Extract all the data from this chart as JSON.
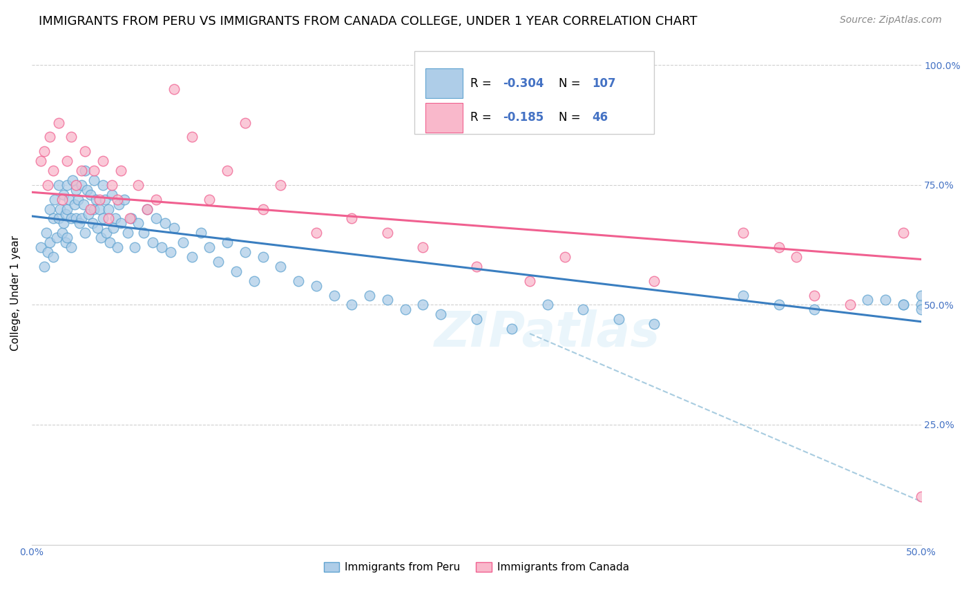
{
  "title": "IMMIGRANTS FROM PERU VS IMMIGRANTS FROM CANADA COLLEGE, UNDER 1 YEAR CORRELATION CHART",
  "source": "Source: ZipAtlas.com",
  "ylabel": "College, Under 1 year",
  "xlim": [
    0.0,
    0.5
  ],
  "ylim": [
    0.0,
    1.05
  ],
  "xtick_labels": [
    "0.0%",
    "",
    "",
    "",
    "",
    "50.0%"
  ],
  "xtick_vals": [
    0.0,
    0.1,
    0.2,
    0.3,
    0.4,
    0.5
  ],
  "ytick_vals": [
    0.25,
    0.5,
    0.75,
    1.0
  ],
  "ytick_right_labels": [
    "25.0%",
    "50.0%",
    "75.0%",
    "100.0%"
  ],
  "blue_color": "#aecde8",
  "blue_edge_color": "#5fa3d0",
  "pink_color": "#f9b8cb",
  "pink_edge_color": "#f06090",
  "blue_line_color": "#3a7ec0",
  "pink_line_color": "#f06090",
  "dashed_line_color": "#a8cce0",
  "right_axis_color": "#4472c4",
  "legend_R_blue": "-0.304",
  "legend_N_blue": "107",
  "legend_R_pink": "-0.185",
  "legend_N_pink": "46",
  "watermark": "ZIPatlas",
  "blue_trend_x0": 0.0,
  "blue_trend_x1": 0.5,
  "blue_trend_y0": 0.685,
  "blue_trend_y1": 0.465,
  "pink_trend_x0": 0.0,
  "pink_trend_x1": 0.5,
  "pink_trend_y0": 0.735,
  "pink_trend_y1": 0.595,
  "dashed_trend_x0": 0.28,
  "dashed_trend_x1": 0.5,
  "dashed_trend_y0": 0.44,
  "dashed_trend_y1": 0.09,
  "blue_scatter_x": [
    0.005,
    0.007,
    0.008,
    0.009,
    0.01,
    0.01,
    0.012,
    0.012,
    0.013,
    0.014,
    0.015,
    0.015,
    0.016,
    0.017,
    0.018,
    0.018,
    0.019,
    0.019,
    0.02,
    0.02,
    0.02,
    0.021,
    0.022,
    0.022,
    0.023,
    0.024,
    0.025,
    0.025,
    0.026,
    0.027,
    0.028,
    0.028,
    0.029,
    0.03,
    0.03,
    0.031,
    0.032,
    0.033,
    0.034,
    0.035,
    0.035,
    0.036,
    0.037,
    0.038,
    0.039,
    0.04,
    0.04,
    0.041,
    0.042,
    0.043,
    0.044,
    0.045,
    0.046,
    0.047,
    0.048,
    0.049,
    0.05,
    0.052,
    0.054,
    0.056,
    0.058,
    0.06,
    0.063,
    0.065,
    0.068,
    0.07,
    0.073,
    0.075,
    0.078,
    0.08,
    0.085,
    0.09,
    0.095,
    0.1,
    0.105,
    0.11,
    0.115,
    0.12,
    0.125,
    0.13,
    0.14,
    0.15,
    0.16,
    0.17,
    0.18,
    0.19,
    0.2,
    0.21,
    0.22,
    0.23,
    0.25,
    0.27,
    0.29,
    0.31,
    0.33,
    0.35,
    0.4,
    0.42,
    0.44,
    0.47,
    0.49,
    0.5,
    0.5,
    0.5,
    0.49,
    0.48
  ],
  "blue_scatter_y": [
    0.62,
    0.58,
    0.65,
    0.61,
    0.7,
    0.63,
    0.68,
    0.6,
    0.72,
    0.64,
    0.75,
    0.68,
    0.7,
    0.65,
    0.73,
    0.67,
    0.69,
    0.63,
    0.75,
    0.7,
    0.64,
    0.72,
    0.68,
    0.62,
    0.76,
    0.71,
    0.74,
    0.68,
    0.72,
    0.67,
    0.75,
    0.68,
    0.71,
    0.78,
    0.65,
    0.74,
    0.69,
    0.73,
    0.67,
    0.76,
    0.7,
    0.72,
    0.66,
    0.7,
    0.64,
    0.75,
    0.68,
    0.72,
    0.65,
    0.7,
    0.63,
    0.73,
    0.66,
    0.68,
    0.62,
    0.71,
    0.67,
    0.72,
    0.65,
    0.68,
    0.62,
    0.67,
    0.65,
    0.7,
    0.63,
    0.68,
    0.62,
    0.67,
    0.61,
    0.66,
    0.63,
    0.6,
    0.65,
    0.62,
    0.59,
    0.63,
    0.57,
    0.61,
    0.55,
    0.6,
    0.58,
    0.55,
    0.54,
    0.52,
    0.5,
    0.52,
    0.51,
    0.49,
    0.5,
    0.48,
    0.47,
    0.45,
    0.5,
    0.49,
    0.47,
    0.46,
    0.52,
    0.5,
    0.49,
    0.51,
    0.5,
    0.5,
    0.49,
    0.52,
    0.5,
    0.51
  ],
  "pink_scatter_x": [
    0.005,
    0.007,
    0.009,
    0.01,
    0.012,
    0.015,
    0.017,
    0.02,
    0.022,
    0.025,
    0.028,
    0.03,
    0.033,
    0.035,
    0.038,
    0.04,
    0.043,
    0.045,
    0.048,
    0.05,
    0.055,
    0.06,
    0.065,
    0.07,
    0.08,
    0.09,
    0.1,
    0.11,
    0.12,
    0.13,
    0.14,
    0.16,
    0.18,
    0.2,
    0.22,
    0.25,
    0.28,
    0.3,
    0.35,
    0.4,
    0.42,
    0.43,
    0.44,
    0.46,
    0.49,
    0.5
  ],
  "pink_scatter_y": [
    0.8,
    0.82,
    0.75,
    0.85,
    0.78,
    0.88,
    0.72,
    0.8,
    0.85,
    0.75,
    0.78,
    0.82,
    0.7,
    0.78,
    0.72,
    0.8,
    0.68,
    0.75,
    0.72,
    0.78,
    0.68,
    0.75,
    0.7,
    0.72,
    0.95,
    0.85,
    0.72,
    0.78,
    0.88,
    0.7,
    0.75,
    0.65,
    0.68,
    0.65,
    0.62,
    0.58,
    0.55,
    0.6,
    0.55,
    0.65,
    0.62,
    0.6,
    0.52,
    0.5,
    0.65,
    0.1
  ],
  "title_fontsize": 13,
  "source_fontsize": 10,
  "axis_label_fontsize": 11,
  "tick_fontsize": 10
}
